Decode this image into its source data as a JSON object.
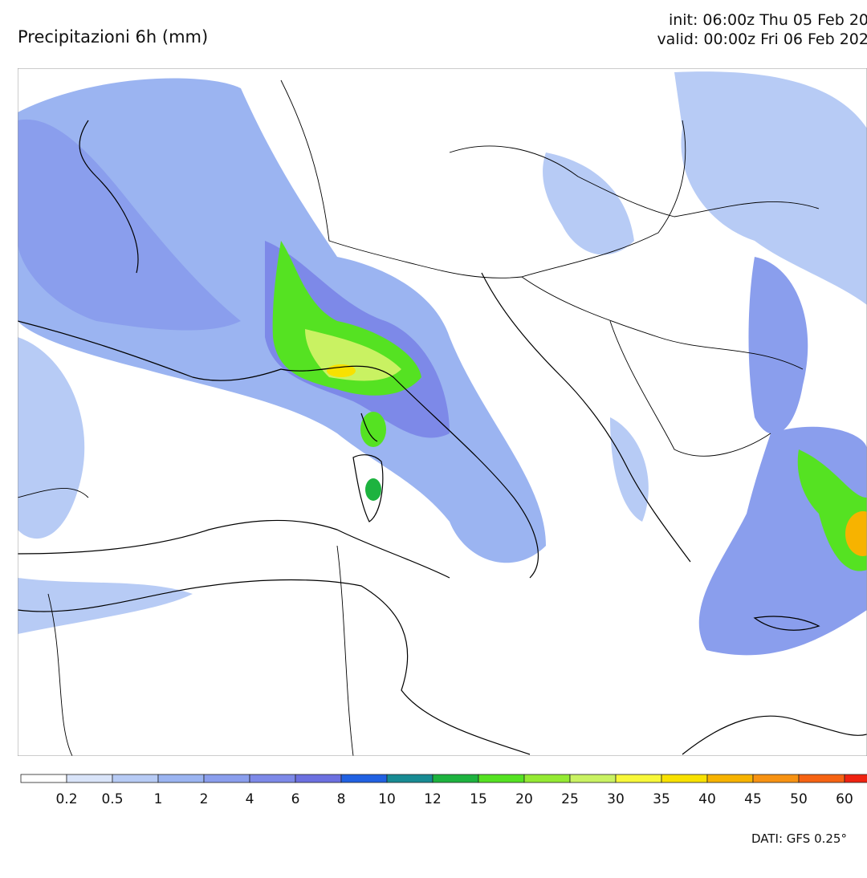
{
  "header": {
    "title": "Precipitazioni 6h (mm)",
    "init": "init: 06:00z Thu 05 Feb 20",
    "valid": "valid: 00:00z Fri 06 Feb 202"
  },
  "colorbar": {
    "colors": [
      "#ffffff",
      "#d9e4f9",
      "#b7cbf5",
      "#9bb4f1",
      "#8a9eed",
      "#7d89e8",
      "#6c70e0",
      "#2161e2",
      "#178b93",
      "#1db33f",
      "#55e222",
      "#94ea33",
      "#c9f262",
      "#f8f83a",
      "#f8e100",
      "#f7b300",
      "#f79212",
      "#f66312",
      "#ef2210"
    ],
    "labels": [
      0.2,
      0.5,
      1,
      2,
      4,
      6,
      8,
      10,
      12,
      15,
      20,
      25,
      30,
      35,
      40,
      45,
      50,
      60
    ]
  },
  "footer": {
    "source": "DATI: GFS 0.25°"
  }
}
